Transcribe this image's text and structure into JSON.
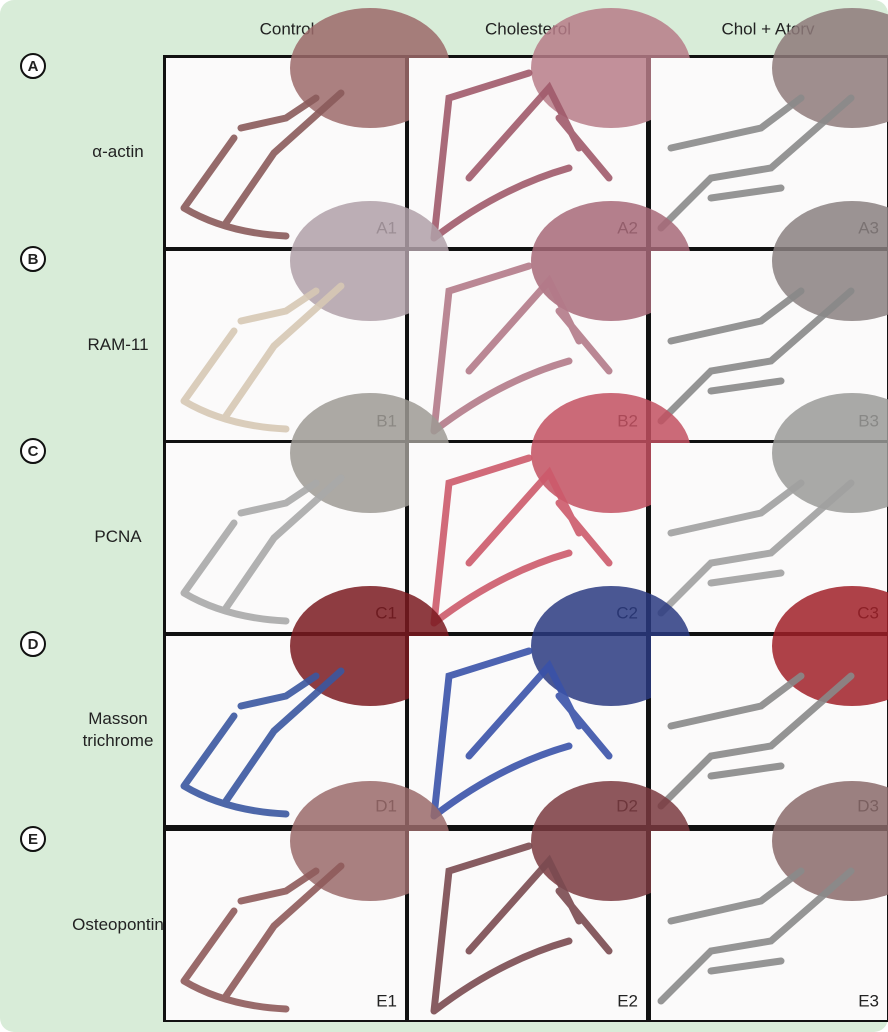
{
  "columns": [
    "Control",
    "Cholesterol",
    "Chol + Atorv"
  ],
  "rows": [
    {
      "letter": "A",
      "label": [
        "α-actin"
      ],
      "panels": [
        "A1",
        "A2",
        "A3"
      ]
    },
    {
      "letter": "B",
      "label": [
        "RAM-11"
      ],
      "panels": [
        "B1",
        "B2",
        "B3"
      ]
    },
    {
      "letter": "C",
      "label": [
        "PCNA"
      ],
      "panels": [
        "C1",
        "C2",
        "C3"
      ]
    },
    {
      "letter": "D",
      "label": [
        "Masson",
        "trichrome"
      ],
      "panels": [
        "D1",
        "D2",
        "D3"
      ]
    },
    {
      "letter": "E",
      "label": [
        "Osteopontin"
      ],
      "panels": [
        "E1",
        "E2",
        "E3"
      ]
    }
  ]
}
